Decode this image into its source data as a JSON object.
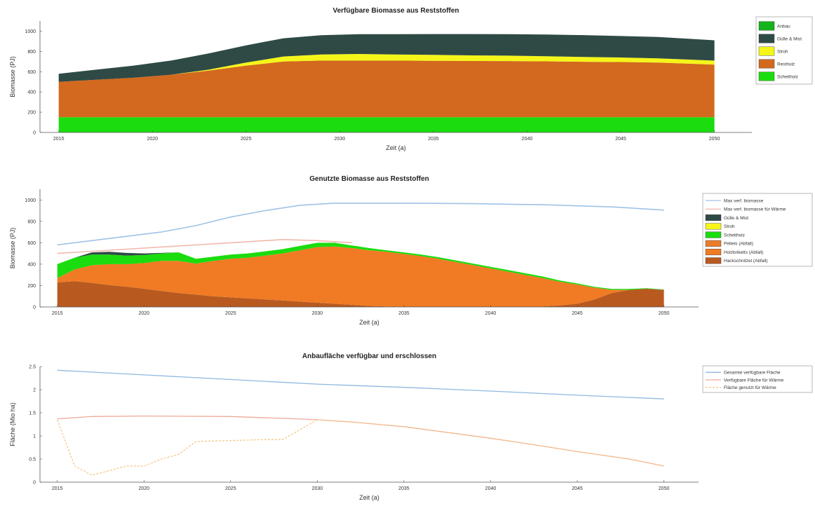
{
  "chart_data": [
    {
      "type": "area",
      "title": "Verfügbare Biomasse aus Reststoffen",
      "xlabel": "Zeit (a)",
      "ylabel": "Biomasse (PJ)",
      "xlim": [
        2014,
        2052
      ],
      "ylim": [
        0,
        1100
      ],
      "xticks": [
        2015,
        2020,
        2025,
        2030,
        2035,
        2040,
        2045,
        2050
      ],
      "yticks": [
        0,
        200,
        400,
        600,
        800,
        1000
      ],
      "legend_position": "outside-top-right",
      "x": [
        2015,
        2017,
        2019,
        2021,
        2023,
        2025,
        2027,
        2029,
        2031,
        2033,
        2035,
        2037,
        2039,
        2041,
        2043,
        2045,
        2047,
        2050
      ],
      "series": [
        {
          "name": "Scheitholz",
          "color": "#1bdc0e",
          "values": [
            150,
            150,
            150,
            150,
            150,
            150,
            150,
            150,
            150,
            150,
            150,
            150,
            150,
            150,
            150,
            150,
            150,
            150
          ]
        },
        {
          "name": "Restholz",
          "color": "#d2691e",
          "values": [
            350,
            370,
            390,
            420,
            460,
            510,
            550,
            560,
            560,
            560,
            558,
            556,
            555,
            552,
            548,
            545,
            540,
            520
          ]
        },
        {
          "name": "Stroh",
          "color": "#f5f51a",
          "values": [
            0,
            0,
            0,
            0,
            10,
            30,
            50,
            60,
            65,
            60,
            58,
            55,
            53,
            50,
            48,
            45,
            42,
            40
          ]
        },
        {
          "name": "Gülle & Mist",
          "color": "#2f4a45",
          "values": [
            80,
            100,
            120,
            140,
            160,
            170,
            180,
            190,
            195,
            200,
            205,
            210,
            212,
            215,
            215,
            212,
            210,
            200
          ]
        },
        {
          "name": "Anbau",
          "color": "#15b31c",
          "values": [
            0,
            0,
            0,
            0,
            0,
            0,
            0,
            0,
            0,
            0,
            0,
            0,
            0,
            0,
            0,
            0,
            0,
            0
          ]
        }
      ]
    },
    {
      "type": "area",
      "title": "Genutzte Biomasse aus Reststoffen",
      "xlabel": "Zeit (a)",
      "ylabel": "Biomasse (PJ)",
      "xlim": [
        2014,
        2052
      ],
      "ylim": [
        0,
        1100
      ],
      "xticks": [
        2015,
        2020,
        2025,
        2030,
        2035,
        2040,
        2045,
        2050
      ],
      "yticks": [
        0,
        200,
        400,
        600,
        800,
        1000
      ],
      "legend_position": "outside-top-right",
      "lines": [
        {
          "name": "Max verf. biomasse",
          "color": "#9fc3e6",
          "x": [
            2015,
            2017,
            2019,
            2021,
            2023,
            2025,
            2027,
            2029,
            2031,
            2033,
            2035,
            2037,
            2039,
            2041,
            2043,
            2045,
            2047,
            2050
          ],
          "values": [
            580,
            620,
            660,
            700,
            760,
            840,
            900,
            950,
            970,
            970,
            970,
            968,
            965,
            960,
            955,
            945,
            935,
            905
          ]
        },
        {
          "name": "Max verf. biomasse für Wärme",
          "color": "#f2b8aa",
          "x": [
            2015,
            2020,
            2025,
            2028,
            2030,
            2032
          ],
          "values": [
            500,
            550,
            600,
            630,
            620,
            600
          ]
        }
      ],
      "x": [
        2015,
        2016,
        2017,
        2018,
        2019,
        2020,
        2021,
        2022,
        2023,
        2024,
        2025,
        2026,
        2027,
        2028,
        2029,
        2030,
        2031,
        2032,
        2033,
        2034,
        2035,
        2036,
        2037,
        2038,
        2039,
        2040,
        2041,
        2042,
        2043,
        2044,
        2045,
        2046,
        2047,
        2048,
        2049,
        2050
      ],
      "series": [
        {
          "name": "Hackschnitzel (Abfall)",
          "color": "#b85a20",
          "values": [
            230,
            240,
            225,
            205,
            190,
            170,
            150,
            130,
            115,
            100,
            90,
            80,
            70,
            60,
            50,
            40,
            30,
            20,
            10,
            5,
            0,
            0,
            0,
            0,
            0,
            0,
            0,
            0,
            5,
            15,
            30,
            70,
            130,
            160,
            170,
            160
          ]
        },
        {
          "name": "Holzbriketts (Abfall)",
          "color": "#f07b24",
          "values": [
            40,
            110,
            165,
            195,
            210,
            240,
            280,
            300,
            290,
            330,
            360,
            380,
            410,
            440,
            480,
            520,
            535,
            530,
            520,
            510,
            495,
            475,
            450,
            420,
            390,
            360,
            330,
            300,
            265,
            220,
            180,
            110,
            30,
            0,
            0,
            0
          ]
        },
        {
          "name": "Pellets (Abfall)",
          "color": "#ea7d2b",
          "values": [
            0,
            0,
            0,
            0,
            0,
            0,
            0,
            0,
            0,
            0,
            0,
            0,
            0,
            0,
            0,
            0,
            0,
            0,
            0,
            0,
            0,
            0,
            0,
            0,
            0,
            0,
            0,
            0,
            0,
            0,
            0,
            0,
            0,
            0,
            0,
            0
          ]
        },
        {
          "name": "Scheitholz",
          "color": "#1bdc0e",
          "values": [
            130,
            110,
            100,
            90,
            80,
            75,
            70,
            80,
            45,
            40,
            40,
            40,
            40,
            40,
            40,
            40,
            35,
            25,
            20,
            15,
            15,
            15,
            15,
            15,
            15,
            15,
            15,
            15,
            15,
            12,
            10,
            8,
            8,
            8,
            5,
            3
          ]
        },
        {
          "name": "Stroh",
          "color": "#f5f51a",
          "values": [
            0,
            0,
            0,
            0,
            0,
            0,
            0,
            0,
            0,
            0,
            0,
            0,
            0,
            0,
            0,
            0,
            0,
            0,
            0,
            0,
            0,
            0,
            0,
            0,
            0,
            0,
            0,
            0,
            0,
            0,
            0,
            0,
            0,
            0,
            0,
            0
          ]
        },
        {
          "name": "Gülle & Mist",
          "color": "#2f4a45",
          "values": [
            0,
            0,
            20,
            25,
            25,
            15,
            5,
            0,
            0,
            0,
            0,
            0,
            0,
            0,
            0,
            0,
            0,
            0,
            0,
            0,
            0,
            0,
            0,
            0,
            0,
            0,
            0,
            0,
            0,
            0,
            0,
            0,
            0,
            0,
            0,
            0
          ]
        }
      ],
      "legend_order": [
        "Max verf. biomasse",
        "Max verf. biomasse für Wärme",
        "Gülle & Mist",
        "Stroh",
        "Scheitholz",
        "Pellets (Abfall)",
        "Holzbriketts (Abfall)",
        "Hackschnitzel (Abfall)"
      ]
    },
    {
      "type": "line",
      "title": "Anbaufläche verfügbar und erschlossen",
      "xlabel": "Zeit (a)",
      "ylabel": "Fläche (Mio ha)",
      "xlim": [
        2014,
        2052
      ],
      "ylim": [
        0,
        2.5
      ],
      "xticks": [
        2015,
        2020,
        2025,
        2030,
        2035,
        2040,
        2045,
        2050
      ],
      "yticks": [
        0,
        0.5,
        1,
        1.5,
        2,
        2.5
      ],
      "legend_position": "outside-top-right",
      "series": [
        {
          "name": "Gesamte verfügbare Fläche",
          "color": "#8fb8e0",
          "dash": false,
          "x": [
            2015,
            2020,
            2025,
            2030,
            2035,
            2040,
            2045,
            2050
          ],
          "values": [
            2.42,
            2.32,
            2.22,
            2.12,
            2.05,
            1.97,
            1.88,
            1.8
          ]
        },
        {
          "name": "Verfügbare Fläche für Wärme",
          "color": "#f0a898",
          "dash": false,
          "x": [
            2015,
            2017,
            2020,
            2025,
            2028,
            2030,
            2032,
            2035,
            2038,
            2040,
            2043,
            2045,
            2048,
            2050
          ],
          "values": [
            1.37,
            1.42,
            1.43,
            1.42,
            1.38,
            1.35,
            1.3,
            1.2,
            1.05,
            0.95,
            0.78,
            0.66,
            0.5,
            0.35
          ]
        },
        {
          "name": "Fläche genutzt für Wärme",
          "color": "#f5c98a",
          "dash": true,
          "x": [
            2015,
            2016,
            2017,
            2018,
            2019,
            2020,
            2021,
            2022,
            2023,
            2025,
            2027,
            2028,
            2030,
            2032,
            2035,
            2038,
            2040,
            2043,
            2045,
            2048,
            2050
          ],
          "values": [
            1.35,
            0.35,
            0.15,
            0.25,
            0.35,
            0.35,
            0.5,
            0.6,
            0.88,
            0.9,
            0.92,
            0.92,
            1.35,
            1.3,
            1.2,
            1.05,
            0.95,
            0.78,
            0.66,
            0.5,
            0.35
          ]
        }
      ]
    }
  ]
}
